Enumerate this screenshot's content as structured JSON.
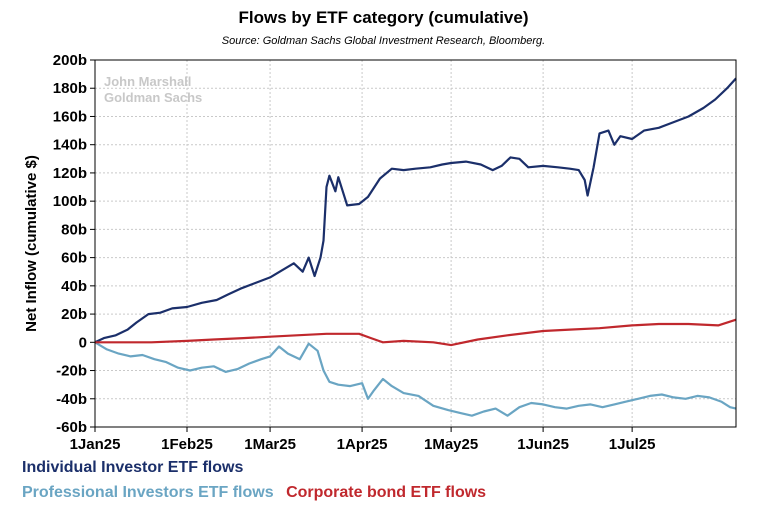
{
  "title": "Flows by ETF category (cumulative)",
  "subtitle": "Source: Goldman Sachs Global Investment Research, Bloomberg.",
  "watermark": [
    "John Marshall",
    "Goldman Sachs"
  ],
  "chart_data": {
    "type": "line",
    "ylabel": "Net Inflow (cumulative $)",
    "ylim": [
      -60,
      200
    ],
    "yticks": [
      -60,
      -40,
      -20,
      0,
      20,
      40,
      60,
      80,
      100,
      120,
      140,
      160,
      180,
      200
    ],
    "ytick_labels": [
      "-60b",
      "-40b",
      "-20b",
      "0",
      "20b",
      "40b",
      "60b",
      "80b",
      "100b",
      "120b",
      "140b",
      "160b",
      "180b",
      "200b"
    ],
    "xlim": [
      "2025-01-01",
      "2025-08-05"
    ],
    "xticks": [
      "2025-01-01",
      "2025-02-01",
      "2025-03-01",
      "2025-04-01",
      "2025-05-01",
      "2025-06-01",
      "2025-07-01"
    ],
    "xtick_labels": [
      "1Jan25",
      "1Feb25",
      "1Mar25",
      "1Apr25",
      "1May25",
      "1Jun25",
      "1Jul25"
    ],
    "grid": true,
    "legend_position": "bottom-left",
    "series": [
      {
        "name": "Individual Investor ETF flows",
        "color": "#1b2f6a",
        "points": [
          [
            "2025-01-01",
            0
          ],
          [
            "2025-01-04",
            3
          ],
          [
            "2025-01-08",
            5
          ],
          [
            "2025-01-12",
            9
          ],
          [
            "2025-01-15",
            14
          ],
          [
            "2025-01-19",
            20
          ],
          [
            "2025-01-23",
            21
          ],
          [
            "2025-01-27",
            24
          ],
          [
            "2025-02-01",
            25
          ],
          [
            "2025-02-06",
            28
          ],
          [
            "2025-02-11",
            30
          ],
          [
            "2025-02-15",
            34
          ],
          [
            "2025-02-19",
            38
          ],
          [
            "2025-02-24",
            42
          ],
          [
            "2025-03-01",
            46
          ],
          [
            "2025-03-05",
            51
          ],
          [
            "2025-03-09",
            56
          ],
          [
            "2025-03-12",
            50
          ],
          [
            "2025-03-14",
            60
          ],
          [
            "2025-03-16",
            47
          ],
          [
            "2025-03-18",
            60
          ],
          [
            "2025-03-19",
            72
          ],
          [
            "2025-03-20",
            110
          ],
          [
            "2025-03-21",
            118
          ],
          [
            "2025-03-23",
            107
          ],
          [
            "2025-03-24",
            117
          ],
          [
            "2025-03-27",
            97
          ],
          [
            "2025-03-31",
            98
          ],
          [
            "2025-04-03",
            103
          ],
          [
            "2025-04-07",
            116
          ],
          [
            "2025-04-11",
            123
          ],
          [
            "2025-04-15",
            122
          ],
          [
            "2025-04-19",
            123
          ],
          [
            "2025-04-24",
            124
          ],
          [
            "2025-04-28",
            126
          ],
          [
            "2025-05-01",
            127
          ],
          [
            "2025-05-06",
            128
          ],
          [
            "2025-05-11",
            126
          ],
          [
            "2025-05-15",
            122
          ],
          [
            "2025-05-18",
            125
          ],
          [
            "2025-05-21",
            131
          ],
          [
            "2025-05-24",
            130
          ],
          [
            "2025-05-27",
            124
          ],
          [
            "2025-06-01",
            125
          ],
          [
            "2025-06-06",
            124
          ],
          [
            "2025-06-10",
            123
          ],
          [
            "2025-06-13",
            122
          ],
          [
            "2025-06-15",
            115
          ],
          [
            "2025-06-16",
            104
          ],
          [
            "2025-06-18",
            124
          ],
          [
            "2025-06-20",
            148
          ],
          [
            "2025-06-23",
            150
          ],
          [
            "2025-06-25",
            140
          ],
          [
            "2025-06-27",
            146
          ],
          [
            "2025-07-01",
            144
          ],
          [
            "2025-07-05",
            150
          ],
          [
            "2025-07-10",
            152
          ],
          [
            "2025-07-15",
            156
          ],
          [
            "2025-07-20",
            160
          ],
          [
            "2025-07-25",
            166
          ],
          [
            "2025-07-29",
            172
          ],
          [
            "2025-08-02",
            180
          ],
          [
            "2025-08-05",
            187
          ]
        ]
      },
      {
        "name": "Professional Investors ETF flows",
        "color": "#6aa5c3",
        "points": [
          [
            "2025-01-01",
            0
          ],
          [
            "2025-01-05",
            -5
          ],
          [
            "2025-01-09",
            -8
          ],
          [
            "2025-01-13",
            -10
          ],
          [
            "2025-01-17",
            -9
          ],
          [
            "2025-01-21",
            -12
          ],
          [
            "2025-01-25",
            -14
          ],
          [
            "2025-01-29",
            -18
          ],
          [
            "2025-02-02",
            -20
          ],
          [
            "2025-02-06",
            -18
          ],
          [
            "2025-02-10",
            -17
          ],
          [
            "2025-02-14",
            -21
          ],
          [
            "2025-02-18",
            -19
          ],
          [
            "2025-02-22",
            -15
          ],
          [
            "2025-02-26",
            -12
          ],
          [
            "2025-03-01",
            -10
          ],
          [
            "2025-03-04",
            -3
          ],
          [
            "2025-03-07",
            -8
          ],
          [
            "2025-03-11",
            -12
          ],
          [
            "2025-03-14",
            -1
          ],
          [
            "2025-03-17",
            -6
          ],
          [
            "2025-03-19",
            -20
          ],
          [
            "2025-03-21",
            -28
          ],
          [
            "2025-03-24",
            -30
          ],
          [
            "2025-03-28",
            -31
          ],
          [
            "2025-04-01",
            -29
          ],
          [
            "2025-04-03",
            -40
          ],
          [
            "2025-04-05",
            -34
          ],
          [
            "2025-04-08",
            -26
          ],
          [
            "2025-04-11",
            -31
          ],
          [
            "2025-04-15",
            -36
          ],
          [
            "2025-04-20",
            -38
          ],
          [
            "2025-04-25",
            -45
          ],
          [
            "2025-04-30",
            -48
          ],
          [
            "2025-05-04",
            -50
          ],
          [
            "2025-05-08",
            -52
          ],
          [
            "2025-05-12",
            -49
          ],
          [
            "2025-05-16",
            -47
          ],
          [
            "2025-05-20",
            -52
          ],
          [
            "2025-05-24",
            -46
          ],
          [
            "2025-05-28",
            -43
          ],
          [
            "2025-06-01",
            -44
          ],
          [
            "2025-06-05",
            -46
          ],
          [
            "2025-06-09",
            -47
          ],
          [
            "2025-06-13",
            -45
          ],
          [
            "2025-06-17",
            -44
          ],
          [
            "2025-06-21",
            -46
          ],
          [
            "2025-06-25",
            -44
          ],
          [
            "2025-06-29",
            -42
          ],
          [
            "2025-07-03",
            -40
          ],
          [
            "2025-07-07",
            -38
          ],
          [
            "2025-07-11",
            -37
          ],
          [
            "2025-07-15",
            -39
          ],
          [
            "2025-07-19",
            -40
          ],
          [
            "2025-07-23",
            -38
          ],
          [
            "2025-07-27",
            -39
          ],
          [
            "2025-07-31",
            -42
          ],
          [
            "2025-08-03",
            -46
          ],
          [
            "2025-08-05",
            -47
          ]
        ]
      },
      {
        "name": "Corporate bond ETF flows",
        "color": "#c0282d",
        "points": [
          [
            "2025-01-01",
            0
          ],
          [
            "2025-01-10",
            0
          ],
          [
            "2025-01-20",
            0
          ],
          [
            "2025-02-01",
            1
          ],
          [
            "2025-02-10",
            2
          ],
          [
            "2025-02-20",
            3
          ],
          [
            "2025-03-01",
            4
          ],
          [
            "2025-03-10",
            5
          ],
          [
            "2025-03-20",
            6
          ],
          [
            "2025-03-31",
            6
          ],
          [
            "2025-04-04",
            3
          ],
          [
            "2025-04-08",
            0
          ],
          [
            "2025-04-15",
            1
          ],
          [
            "2025-04-25",
            0
          ],
          [
            "2025-05-01",
            -2
          ],
          [
            "2025-05-10",
            2
          ],
          [
            "2025-05-20",
            5
          ],
          [
            "2025-06-01",
            8
          ],
          [
            "2025-06-10",
            9
          ],
          [
            "2025-06-20",
            10
          ],
          [
            "2025-07-01",
            12
          ],
          [
            "2025-07-10",
            13
          ],
          [
            "2025-07-20",
            13
          ],
          [
            "2025-07-30",
            12
          ],
          [
            "2025-08-05",
            16
          ]
        ]
      }
    ]
  }
}
